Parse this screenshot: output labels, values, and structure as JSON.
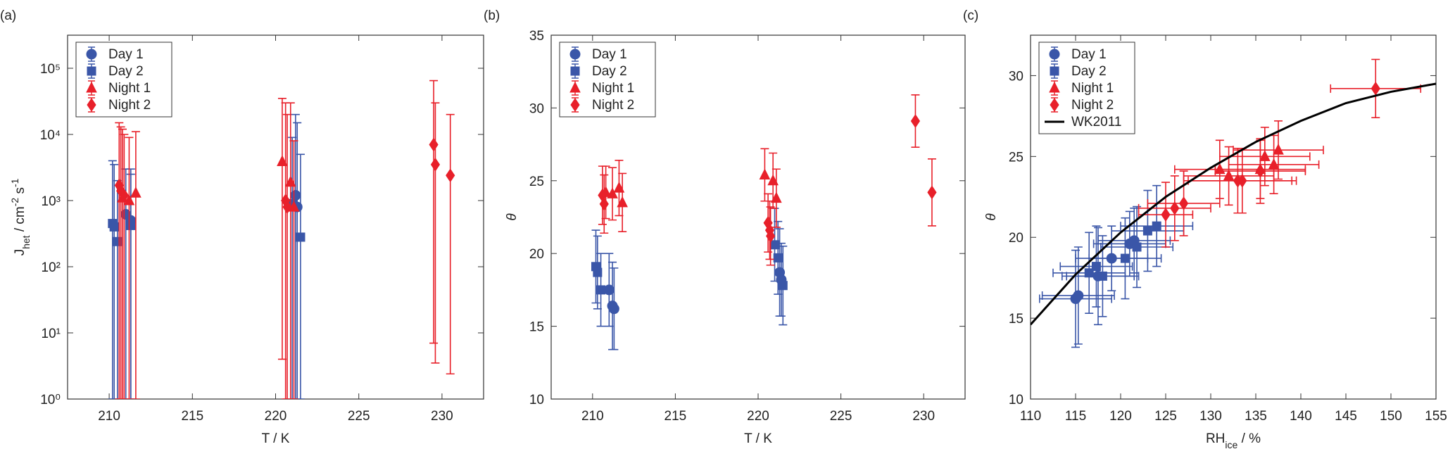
{
  "chart_data": [
    {
      "type": "scatter",
      "panel_label": "(a)",
      "log_y": true,
      "xlabel": "T / K",
      "ylabel": [
        {
          "text": "J"
        },
        {
          "text": "het",
          "shift": "sub"
        },
        {
          "text": " / cm"
        },
        {
          "text": "-2",
          "shift": "sup"
        },
        {
          "text": " s"
        },
        {
          "text": "-1",
          "shift": "sup"
        }
      ],
      "xlim": [
        207.5,
        232.5
      ],
      "xticks": [
        210,
        215,
        220,
        225,
        230
      ],
      "ylim": [
        1,
        316228
      ],
      "yticks": [
        {
          "value": 1,
          "label": "10⁰"
        },
        {
          "value": 10,
          "label": "10¹"
        },
        {
          "value": 100,
          "label": "10²"
        },
        {
          "value": 1000,
          "label": "10³"
        },
        {
          "value": 10000,
          "label": "10⁴"
        },
        {
          "value": 100000,
          "label": "10⁵"
        }
      ],
      "series": [
        {
          "name": "Day 1",
          "color": "#3a56a8",
          "marker": "circle",
          "x": [
            211.0,
            211.3,
            221.2,
            221.3
          ],
          "values": [
            620,
            500,
            1200,
            800
          ],
          "lower": [
            1,
            1,
            1,
            1
          ],
          "upper": [
            3000,
            2500,
            20000,
            15000
          ]
        },
        {
          "name": "Day 2",
          "color": "#3a56a8",
          "marker": "square",
          "x": [
            210.2,
            210.3,
            210.5,
            211.3,
            221.0,
            221.5
          ],
          "values": [
            450,
            400,
            240,
            420,
            900,
            280
          ],
          "lower": [
            1,
            1,
            1,
            1,
            1,
            1
          ],
          "upper": [
            4000,
            3500,
            2000,
            3000,
            9000,
            5000
          ]
        },
        {
          "name": "Night 1",
          "color": "#e8202a",
          "marker": "triangle",
          "x": [
            210.8,
            211.2,
            211.6,
            220.4,
            220.9,
            221.1
          ],
          "values": [
            1100,
            1000,
            1300,
            3900,
            1900,
            800
          ],
          "lower": [
            1,
            1,
            1,
            4,
            1,
            1
          ],
          "upper": [
            12000,
            9000,
            11000,
            35000,
            30000,
            8000
          ]
        },
        {
          "name": "Night 2",
          "color": "#e8202a",
          "marker": "diamond",
          "x": [
            210.6,
            210.7,
            210.9,
            220.6,
            220.7,
            229.5,
            229.6,
            230.5
          ],
          "values": [
            1700,
            1400,
            1200,
            1000,
            800,
            7000,
            3500,
            2400
          ],
          "lower": [
            1,
            1,
            1,
            1,
            1,
            7,
            3.5,
            2.4
          ],
          "upper": [
            15000,
            13000,
            10000,
            30000,
            20000,
            65000,
            30000,
            20000
          ]
        }
      ]
    },
    {
      "type": "scatter",
      "panel_label": "(b)",
      "xlabel": "T / K",
      "ylabel": [
        {
          "text": "θ"
        }
      ],
      "xlim": [
        207.5,
        232.5
      ],
      "xticks": [
        210,
        215,
        220,
        225,
        230
      ],
      "ylim": [
        10,
        35
      ],
      "yticks": [
        10,
        15,
        20,
        25,
        30,
        35
      ],
      "series": [
        {
          "name": "Day 1",
          "color": "#3a56a8",
          "marker": "circle",
          "x": [
            211.0,
            211.2,
            211.3,
            221.3,
            221.4
          ],
          "values": [
            17.5,
            16.4,
            16.2,
            18.7,
            18.2
          ],
          "yerr": [
            2.5,
            3,
            2.8,
            3,
            2.5
          ]
        },
        {
          "name": "Day 2",
          "color": "#3a56a8",
          "marker": "square",
          "x": [
            210.2,
            210.3,
            210.5,
            221.0,
            221.2,
            221.5
          ],
          "values": [
            19.1,
            18.7,
            17.5,
            20.6,
            19.7,
            17.8
          ],
          "yerr": [
            2.5,
            2.5,
            2.5,
            2.5,
            2.5,
            2.7
          ]
        },
        {
          "name": "Night 1",
          "color": "#e8202a",
          "marker": "triangle",
          "x": [
            210.8,
            211.2,
            211.6,
            211.8,
            220.4,
            220.9,
            221.1
          ],
          "values": [
            24.2,
            24.1,
            24.5,
            23.5,
            25.4,
            25.0,
            23.8
          ],
          "yerr": [
            1.8,
            1.8,
            1.9,
            2,
            1.8,
            1.9,
            2
          ]
        },
        {
          "name": "Night 2",
          "color": "#e8202a",
          "marker": "diamond",
          "x": [
            210.6,
            210.7,
            220.6,
            220.7,
            220.75,
            229.5,
            230.5
          ],
          "values": [
            24.0,
            23.4,
            22.1,
            21.6,
            21.2,
            29.1,
            24.2
          ],
          "yerr": [
            2,
            2,
            2,
            2,
            2,
            1.8,
            2.3
          ]
        }
      ]
    },
    {
      "type": "scatter",
      "panel_label": "(c)",
      "xlabel": [
        {
          "text": "RH"
        },
        {
          "text": "ice",
          "shift": "sub"
        },
        {
          "text": " / %"
        }
      ],
      "ylabel": [
        {
          "text": "θ"
        }
      ],
      "xlim": [
        110,
        155
      ],
      "xticks": [
        110,
        115,
        120,
        125,
        130,
        135,
        140,
        145,
        150,
        155
      ],
      "ylim": [
        10,
        32.5
      ],
      "yticks": [
        10,
        15,
        20,
        25,
        30
      ],
      "series": [
        {
          "name": "Day 1",
          "color": "#3a56a8",
          "marker": "circle",
          "x": [
            115,
            115.3,
            117.5,
            119,
            121,
            121.5
          ],
          "values": [
            16.2,
            16.4,
            17.6,
            18.7,
            19.6,
            19.8
          ],
          "xerr": [
            4,
            4,
            4,
            4,
            4,
            4
          ],
          "yerr": [
            3,
            3,
            3,
            2,
            2,
            2
          ]
        },
        {
          "name": "Day 2",
          "color": "#3a56a8",
          "marker": "square",
          "x": [
            116.5,
            117.3,
            118,
            120.5,
            121.8,
            123,
            124
          ],
          "values": [
            17.8,
            18.2,
            17.6,
            18.7,
            19.4,
            20.4,
            20.7
          ],
          "xerr": [
            4,
            4,
            4,
            4,
            4,
            4,
            4
          ],
          "yerr": [
            2.5,
            2.5,
            2.5,
            2.5,
            2.5,
            2.5,
            2.5
          ]
        },
        {
          "name": "Night 1",
          "color": "#e8202a",
          "marker": "triangle",
          "x": [
            131,
            132,
            135.5,
            136,
            137,
            137.5
          ],
          "values": [
            24.2,
            23.8,
            24.2,
            25.0,
            24.5,
            25.4
          ],
          "xerr": [
            5,
            5,
            5,
            5,
            5,
            5
          ],
          "yerr": [
            1.8,
            1.8,
            1.8,
            1.8,
            1.8,
            1.8
          ]
        },
        {
          "name": "Night 2",
          "color": "#e8202a",
          "marker": "diamond",
          "x": [
            125,
            126,
            127,
            133,
            133.5,
            135.5,
            148.3
          ],
          "values": [
            21.4,
            21.8,
            22.1,
            23.5,
            23.5,
            24.1,
            29.2
          ],
          "xerr": [
            3,
            4,
            4,
            6,
            6,
            5,
            5
          ],
          "yerr": [
            2,
            2,
            2,
            2,
            2,
            2,
            1.8
          ]
        },
        {
          "name": "WK2011",
          "color": "#000000",
          "marker": "line",
          "x": [
            110,
            115,
            120,
            125,
            130,
            135,
            140,
            145,
            150,
            155
          ],
          "values": [
            14.6,
            17.7,
            20.3,
            22.5,
            24.3,
            25.9,
            27.2,
            28.3,
            29.0,
            29.5
          ]
        }
      ]
    }
  ]
}
